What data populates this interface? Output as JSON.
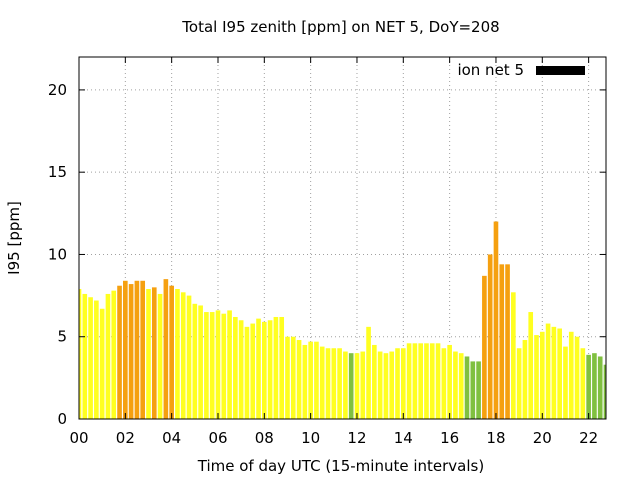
{
  "chart_data": {
    "type": "bar",
    "title": "Total I95 zenith [ppm] on NET 5, DoY=208",
    "xlabel": "Time of day UTC (15-minute intervals)",
    "ylabel": "I95 [ppm]",
    "xlim": [
      0,
      22.75
    ],
    "ylim": [
      0,
      22
    ],
    "x_ticks": [
      "00",
      "02",
      "04",
      "06",
      "08",
      "10",
      "12",
      "14",
      "16",
      "18",
      "20",
      "22"
    ],
    "y_ticks": [
      "0",
      "5",
      "10",
      "15",
      "20"
    ],
    "grid": true,
    "legend": {
      "label": "ion net 5",
      "position": "top-right",
      "color": "#000000"
    },
    "colors": {
      "low": "#80c040",
      "mid": "#ffff20",
      "high": "#f5a010"
    },
    "bar_width_hours": 0.2,
    "bars": [
      {
        "x": 0.0,
        "value": 7.9,
        "level": "mid"
      },
      {
        "x": 0.25,
        "value": 7.6,
        "level": "mid"
      },
      {
        "x": 0.5,
        "value": 7.4,
        "level": "mid"
      },
      {
        "x": 0.75,
        "value": 7.2,
        "level": "mid"
      },
      {
        "x": 1.0,
        "value": 6.7,
        "level": "mid"
      },
      {
        "x": 1.25,
        "value": 7.6,
        "level": "mid"
      },
      {
        "x": 1.5,
        "value": 7.8,
        "level": "mid"
      },
      {
        "x": 1.75,
        "value": 8.1,
        "level": "high"
      },
      {
        "x": 2.0,
        "value": 8.4,
        "level": "high"
      },
      {
        "x": 2.25,
        "value": 8.2,
        "level": "high"
      },
      {
        "x": 2.5,
        "value": 8.4,
        "level": "high"
      },
      {
        "x": 2.75,
        "value": 8.4,
        "level": "high"
      },
      {
        "x": 3.0,
        "value": 7.9,
        "level": "mid"
      },
      {
        "x": 3.25,
        "value": 8.0,
        "level": "high"
      },
      {
        "x": 3.5,
        "value": 7.6,
        "level": "mid"
      },
      {
        "x": 3.75,
        "value": 8.5,
        "level": "high"
      },
      {
        "x": 4.0,
        "value": 8.1,
        "level": "high"
      },
      {
        "x": 4.25,
        "value": 7.9,
        "level": "mid"
      },
      {
        "x": 4.5,
        "value": 7.7,
        "level": "mid"
      },
      {
        "x": 4.75,
        "value": 7.5,
        "level": "mid"
      },
      {
        "x": 5.0,
        "value": 7.0,
        "level": "mid"
      },
      {
        "x": 5.25,
        "value": 6.9,
        "level": "mid"
      },
      {
        "x": 5.5,
        "value": 6.5,
        "level": "mid"
      },
      {
        "x": 5.75,
        "value": 6.5,
        "level": "mid"
      },
      {
        "x": 6.0,
        "value": 6.6,
        "level": "mid"
      },
      {
        "x": 6.25,
        "value": 6.4,
        "level": "mid"
      },
      {
        "x": 6.5,
        "value": 6.6,
        "level": "mid"
      },
      {
        "x": 6.75,
        "value": 6.2,
        "level": "mid"
      },
      {
        "x": 7.0,
        "value": 6.0,
        "level": "mid"
      },
      {
        "x": 7.25,
        "value": 5.6,
        "level": "mid"
      },
      {
        "x": 7.5,
        "value": 5.8,
        "level": "mid"
      },
      {
        "x": 7.75,
        "value": 6.1,
        "level": "mid"
      },
      {
        "x": 8.0,
        "value": 5.9,
        "level": "mid"
      },
      {
        "x": 8.25,
        "value": 6.0,
        "level": "mid"
      },
      {
        "x": 8.5,
        "value": 6.2,
        "level": "mid"
      },
      {
        "x": 8.75,
        "value": 6.2,
        "level": "mid"
      },
      {
        "x": 9.0,
        "value": 5.0,
        "level": "mid"
      },
      {
        "x": 9.25,
        "value": 5.0,
        "level": "mid"
      },
      {
        "x": 9.5,
        "value": 4.8,
        "level": "mid"
      },
      {
        "x": 9.75,
        "value": 4.5,
        "level": "mid"
      },
      {
        "x": 10.0,
        "value": 4.7,
        "level": "mid"
      },
      {
        "x": 10.25,
        "value": 4.7,
        "level": "mid"
      },
      {
        "x": 10.5,
        "value": 4.4,
        "level": "mid"
      },
      {
        "x": 10.75,
        "value": 4.3,
        "level": "mid"
      },
      {
        "x": 11.0,
        "value": 4.3,
        "level": "mid"
      },
      {
        "x": 11.25,
        "value": 4.3,
        "level": "mid"
      },
      {
        "x": 11.5,
        "value": 4.1,
        "level": "mid"
      },
      {
        "x": 11.75,
        "value": 4.0,
        "level": "low"
      },
      {
        "x": 12.0,
        "value": 4.0,
        "level": "mid"
      },
      {
        "x": 12.25,
        "value": 4.1,
        "level": "mid"
      },
      {
        "x": 12.5,
        "value": 5.6,
        "level": "mid"
      },
      {
        "x": 12.75,
        "value": 4.5,
        "level": "mid"
      },
      {
        "x": 13.0,
        "value": 4.1,
        "level": "mid"
      },
      {
        "x": 13.25,
        "value": 4.0,
        "level": "mid"
      },
      {
        "x": 13.5,
        "value": 4.1,
        "level": "mid"
      },
      {
        "x": 13.75,
        "value": 4.3,
        "level": "mid"
      },
      {
        "x": 14.0,
        "value": 4.3,
        "level": "mid"
      },
      {
        "x": 14.25,
        "value": 4.6,
        "level": "mid"
      },
      {
        "x": 14.5,
        "value": 4.6,
        "level": "mid"
      },
      {
        "x": 14.75,
        "value": 4.6,
        "level": "mid"
      },
      {
        "x": 15.0,
        "value": 4.6,
        "level": "mid"
      },
      {
        "x": 15.25,
        "value": 4.6,
        "level": "mid"
      },
      {
        "x": 15.5,
        "value": 4.6,
        "level": "mid"
      },
      {
        "x": 15.75,
        "value": 4.3,
        "level": "mid"
      },
      {
        "x": 16.0,
        "value": 4.5,
        "level": "mid"
      },
      {
        "x": 16.25,
        "value": 4.1,
        "level": "mid"
      },
      {
        "x": 16.5,
        "value": 4.0,
        "level": "mid"
      },
      {
        "x": 16.75,
        "value": 3.8,
        "level": "low"
      },
      {
        "x": 17.0,
        "value": 3.5,
        "level": "low"
      },
      {
        "x": 17.25,
        "value": 3.5,
        "level": "low"
      },
      {
        "x": 17.5,
        "value": 8.7,
        "level": "high"
      },
      {
        "x": 17.75,
        "value": 10.0,
        "level": "high"
      },
      {
        "x": 18.0,
        "value": 12.0,
        "level": "high"
      },
      {
        "x": 18.25,
        "value": 9.4,
        "level": "high"
      },
      {
        "x": 18.5,
        "value": 9.4,
        "level": "high"
      },
      {
        "x": 18.75,
        "value": 7.7,
        "level": "mid"
      },
      {
        "x": 19.0,
        "value": 4.3,
        "level": "mid"
      },
      {
        "x": 19.25,
        "value": 4.8,
        "level": "mid"
      },
      {
        "x": 19.5,
        "value": 6.5,
        "level": "mid"
      },
      {
        "x": 19.75,
        "value": 5.1,
        "level": "mid"
      },
      {
        "x": 20.0,
        "value": 5.3,
        "level": "mid"
      },
      {
        "x": 20.25,
        "value": 5.8,
        "level": "mid"
      },
      {
        "x": 20.5,
        "value": 5.6,
        "level": "mid"
      },
      {
        "x": 20.75,
        "value": 5.5,
        "level": "mid"
      },
      {
        "x": 21.0,
        "value": 4.4,
        "level": "mid"
      },
      {
        "x": 21.25,
        "value": 5.3,
        "level": "mid"
      },
      {
        "x": 21.5,
        "value": 5.0,
        "level": "mid"
      },
      {
        "x": 21.75,
        "value": 4.3,
        "level": "mid"
      },
      {
        "x": 22.0,
        "value": 3.9,
        "level": "low"
      },
      {
        "x": 22.25,
        "value": 4.0,
        "level": "low"
      },
      {
        "x": 22.5,
        "value": 3.8,
        "level": "low"
      },
      {
        "x": 22.75,
        "value": 3.3,
        "level": "low"
      }
    ]
  }
}
